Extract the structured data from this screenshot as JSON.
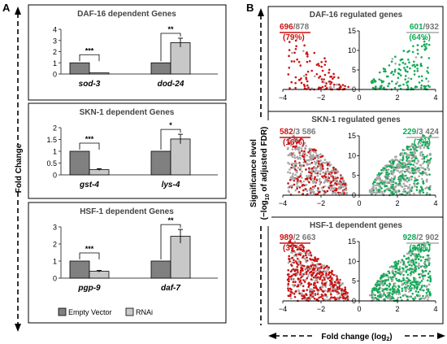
{
  "panel_a": {
    "letter": "A",
    "y_axis_label": "Fold Change",
    "legend": [
      {
        "label": "Empty Vector",
        "color": "#808080"
      },
      {
        "label": "RNAi",
        "color": "#c8c8c8"
      }
    ]
  },
  "panel_b": {
    "letter": "B",
    "y_axis_label_line1": "Significance level",
    "y_axis_label_line2": "(−log",
    "y_axis_label_sub": "10",
    "y_axis_label_line2_end": " of adjusted FDR)",
    "x_axis_label": "Fold change (log",
    "x_axis_label_sub": "2",
    "x_axis_label_end": ")",
    "colors": {
      "down": "#cc1111",
      "up": "#11aa55",
      "ns": "#a8a8a8"
    }
  },
  "chart_data": [
    {
      "type": "bar",
      "title": "DAF-16 dependent Genes",
      "categories": [
        "sod-3",
        "dod-24"
      ],
      "series": [
        {
          "name": "Empty Vector",
          "values": [
            1.0,
            1.0
          ]
        },
        {
          "name": "RNAi",
          "values": [
            0.1,
            2.8
          ]
        }
      ],
      "errors": [
        [
          0,
          0
        ],
        [
          0,
          0.4
        ]
      ],
      "significance": [
        "***",
        "**"
      ],
      "ylim": [
        0,
        4
      ],
      "yticks": [
        0,
        1,
        2,
        3,
        4
      ],
      "ylabel": "Fold Change"
    },
    {
      "type": "bar",
      "title": "SKN-1 dependent Genes",
      "categories": [
        "gst-4",
        "lys-4"
      ],
      "series": [
        {
          "name": "Empty Vector",
          "values": [
            1.0,
            1.0
          ]
        },
        {
          "name": "RNAi",
          "values": [
            0.22,
            1.52
          ]
        }
      ],
      "errors": [
        [
          0,
          0.04
        ],
        [
          0,
          0.2
        ]
      ],
      "significance": [
        "***",
        "*"
      ],
      "ylim": [
        0,
        2
      ],
      "yticks": [
        0,
        0.5,
        1,
        1.5,
        2
      ],
      "ylabel": "Fold Change"
    },
    {
      "type": "bar",
      "title": "HSF-1 dependent Genes",
      "categories": [
        "pgp-9",
        "daf-7"
      ],
      "series": [
        {
          "name": "Empty Vector",
          "values": [
            1.0,
            1.0
          ]
        },
        {
          "name": "RNAi",
          "values": [
            0.4,
            2.45
          ]
        }
      ],
      "errors": [
        [
          0,
          0.05
        ],
        [
          0,
          0.4
        ]
      ],
      "significance": [
        "***",
        "**"
      ],
      "ylim": [
        0,
        3
      ],
      "yticks": [
        0,
        1,
        2,
        3
      ],
      "ylabel": "Fold Change"
    },
    {
      "type": "scatter",
      "title": "DAF-16  regulated genes",
      "xlim": [
        -4,
        4
      ],
      "ylim": [
        0,
        15
      ],
      "xticks": [
        -4,
        -2,
        0,
        2,
        4
      ],
      "yticks": [
        0,
        5,
        10,
        15
      ],
      "left_count": "696",
      "left_total": "/878",
      "left_pct": "(79%)",
      "right_count": "601",
      "right_total": "/932",
      "right_pct": "(64%)",
      "density": "low",
      "ns_fraction": 0.05
    },
    {
      "type": "scatter",
      "title": "SKN-1  regulated genes",
      "xlim": [
        -4,
        4
      ],
      "ylim": [
        0,
        15
      ],
      "xticks": [
        -4,
        -2,
        0,
        2,
        4
      ],
      "yticks": [
        0,
        5,
        10,
        15
      ],
      "left_count": "582",
      "left_total": "/3 586",
      "left_pct": "(16%)",
      "right_count": "229",
      "right_total": "/3 424",
      "right_pct": "(7%)",
      "density": "high",
      "ns_fraction": 0.6
    },
    {
      "type": "scatter",
      "title": "HSF-1  dependent genes",
      "xlim": [
        -4,
        4
      ],
      "ylim": [
        0,
        15
      ],
      "xticks": [
        -4,
        -2,
        0,
        2,
        4
      ],
      "yticks": [
        0,
        5,
        10,
        15
      ],
      "left_count": "989",
      "left_total": "/2 663",
      "left_pct": "(37%)",
      "right_count": "928",
      "right_total": "/2 902",
      "right_pct": "(32%)",
      "density": "high",
      "ns_fraction": 0.3
    }
  ]
}
